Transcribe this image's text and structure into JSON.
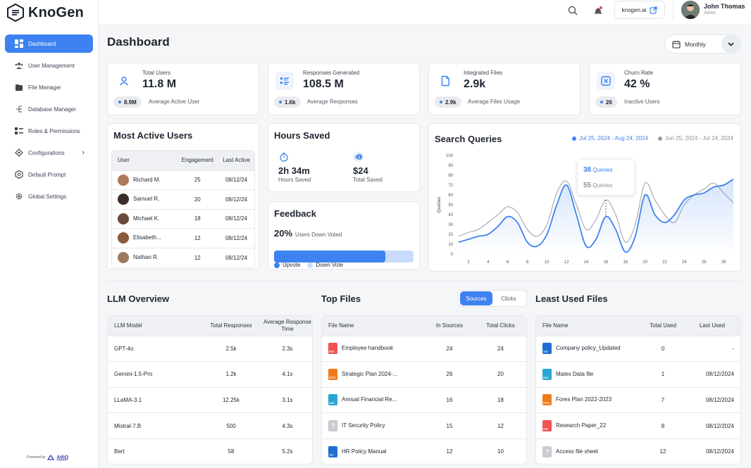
{
  "app": {
    "logo_text": "KnoGen"
  },
  "sidebar": {
    "items": [
      {
        "label": "Dashboard",
        "icon": "dashboard-icon",
        "active": true
      },
      {
        "label": "User Management",
        "icon": "users-icon"
      },
      {
        "label": "File Manager",
        "icon": "folder-icon"
      },
      {
        "label": "Database Manager",
        "icon": "database-icon"
      },
      {
        "label": "Roles & Permissions",
        "icon": "roles-icon"
      },
      {
        "label": "Configurations",
        "icon": "config-icon",
        "has_chevron": true
      },
      {
        "label": "Default Prompt",
        "icon": "prompt-icon"
      },
      {
        "label": "Global Settings",
        "icon": "gear-icon"
      }
    ],
    "powered_by": "Powered by",
    "powered_brand": "AtliQ"
  },
  "topbar": {
    "site_label": "knogen.ai",
    "user_name": "John Thomas",
    "user_role": "Admin"
  },
  "header": {
    "title": "Dashboard",
    "period": "Monthly"
  },
  "stats": [
    {
      "label": "Total Users",
      "value": "11.8 M",
      "pill": "8.9M",
      "desc": "Average Active User",
      "icon": "user-icon"
    },
    {
      "label": "Responses Generated",
      "value": "108.5 M",
      "pill": "1.6k",
      "desc": "Average Responses",
      "icon": "list-icon"
    },
    {
      "label": "Integrated Files",
      "value": "2.9k",
      "pill": "2.9k",
      "desc": "Average Files Usage",
      "icon": "file-icon"
    },
    {
      "label": "Churn Rate",
      "value": "42 %",
      "pill": "26",
      "desc": "Inactive Users",
      "icon": "churn-icon"
    }
  ],
  "active_users": {
    "title": "Most Active Users",
    "headers": [
      "User",
      "Engagement",
      "Last Active"
    ],
    "rows": [
      {
        "name": "Richard M.",
        "engagement": "25",
        "last": "08/12/24"
      },
      {
        "name": "Samuel R.",
        "engagement": "20",
        "last": "08/12/24"
      },
      {
        "name": "Michael K.",
        "engagement": "18",
        "last": "08/12/24"
      },
      {
        "name": "Elisabeth...",
        "engagement": "12",
        "last": "08/12/24"
      },
      {
        "name": "Nathan R.",
        "engagement": "12",
        "last": "08/12/24"
      }
    ]
  },
  "hours_saved": {
    "title": "Hours Saved",
    "items": [
      {
        "value": "2h 34m",
        "label": "Hours Saved",
        "icon": "timer-icon"
      },
      {
        "value": "$24",
        "label": "Total Saved",
        "icon": "money-icon"
      }
    ]
  },
  "feedback": {
    "title": "Feedback",
    "percent": "20%",
    "desc": "Users Down Voted",
    "upvote_fraction": 0.8,
    "legend_up": "Upvote",
    "legend_down": "Down Vote",
    "colors": {
      "up": "#3d82f0",
      "down": "#c9dcfb"
    }
  },
  "search_queries": {
    "title": "Search Queries",
    "legend_current": "Jul 25, 2024 - Aug 24, 2024",
    "legend_previous": "Jun 25, 2024 - Jul 24, 2024",
    "tooltip": {
      "current_value": "38",
      "previous_value": "55",
      "unit": "Queries"
    }
  },
  "chart_data": {
    "type": "line",
    "ylabel": "Queries",
    "xlabel": "",
    "ylim": [
      0,
      100
    ],
    "yticks": [
      "0",
      "10",
      "20",
      "30",
      "40",
      "50",
      "60",
      "70",
      "80",
      "90",
      "100"
    ],
    "xticks": [
      "2",
      "4",
      "6",
      "8",
      "10",
      "12",
      "14",
      "16",
      "18",
      "20",
      "22",
      "24",
      "26",
      "28"
    ],
    "grid": false,
    "legend": "top-right",
    "series": [
      {
        "name": "Jul 25, 2024 - Aug 24, 2024",
        "color": "#3d82f0",
        "x": [
          1,
          2,
          3,
          4,
          5,
          6,
          7,
          8,
          9,
          10,
          11,
          12,
          13,
          14,
          15,
          16,
          17,
          18,
          19,
          20,
          21,
          22,
          23,
          24,
          25,
          26,
          27,
          28,
          29
        ],
        "values": [
          12,
          15,
          18,
          20,
          28,
          38,
          32,
          12,
          8,
          20,
          50,
          70,
          40,
          8,
          15,
          38,
          25,
          2,
          18,
          60,
          40,
          32,
          40,
          55,
          60,
          62,
          68,
          70,
          76
        ]
      },
      {
        "name": "Jun 25, 2024 - Jul 24, 2024",
        "color": "#9a9ea6",
        "x": [
          1,
          2,
          3,
          4,
          5,
          6,
          7,
          8,
          9,
          10,
          11,
          12,
          13,
          14,
          15,
          16,
          17,
          18,
          19,
          20,
          21,
          22,
          23,
          24,
          25,
          26,
          27,
          28,
          29
        ],
        "values": [
          18,
          22,
          25,
          32,
          40,
          48,
          42,
          25,
          18,
          30,
          62,
          74,
          50,
          25,
          35,
          55,
          40,
          12,
          30,
          72,
          55,
          40,
          32,
          50,
          60,
          66,
          72,
          62,
          52
        ]
      }
    ]
  },
  "llm_overview": {
    "title": "LLM Overview",
    "headers": [
      "LLM Model",
      "Total Responses",
      "Average Response Time"
    ],
    "rows": [
      {
        "model": "GPT-4o",
        "responses": "2.5k",
        "time": "2.3s"
      },
      {
        "model": "Gemini-1.5-Pro",
        "responses": "1.2k",
        "time": "4.1s"
      },
      {
        "model": "LLaMA-3.1",
        "responses": "12.25k",
        "time": "3.1s"
      },
      {
        "model": "Mistral-7.B",
        "responses": "500",
        "time": "4.3s"
      },
      {
        "model": "Bert",
        "responses": "58",
        "time": "5.2s"
      }
    ]
  },
  "top_files": {
    "title": "Top Files",
    "toggle": [
      "Sources",
      "Clicks"
    ],
    "headers": [
      "File Name",
      "In Sources",
      "Total Clicks"
    ],
    "rows": [
      {
        "name": "Employee handbook",
        "type": "PDF",
        "color": "#ef5350",
        "sources": "24",
        "clicks": "24"
      },
      {
        "name": "Strategic Plan 2024-...",
        "type": "PPTX",
        "color": "#f07a1a",
        "sources": "26",
        "clicks": "20"
      },
      {
        "name": "Annual Financial Re...",
        "type": "DOC",
        "color": "#27a6d6",
        "sources": "16",
        "clicks": "18"
      },
      {
        "name": "IT Security Policy",
        "type": "?",
        "color": "#c8cbd0",
        "sources": "15",
        "clicks": "12"
      },
      {
        "name": "HR Policy Manual",
        "type": "TXT",
        "color": "#1f6fd1",
        "sources": "12",
        "clicks": "10"
      }
    ]
  },
  "least_files": {
    "title": "Least Used Files",
    "headers": [
      "File Name",
      "Total Used",
      "Last Used"
    ],
    "rows": [
      {
        "name": "Company policy_Updated",
        "type": "TXT",
        "color": "#1f6fd1",
        "used": "0",
        "last": "-"
      },
      {
        "name": "Matex Data file",
        "type": "DOC",
        "color": "#27a6d6",
        "used": "1",
        "last": "08/12/2024"
      },
      {
        "name": "Forex Plan 2022-2023",
        "type": "PPTX",
        "color": "#f07a1a",
        "used": "7",
        "last": "08/12/2024"
      },
      {
        "name": "Research Paper_22",
        "type": "PDF",
        "color": "#ef5350",
        "used": "8",
        "last": "08/12/2024"
      },
      {
        "name": "Access file sheet",
        "type": "?",
        "color": "#c8cbd0",
        "used": "12",
        "last": "08/12/2024"
      }
    ]
  }
}
